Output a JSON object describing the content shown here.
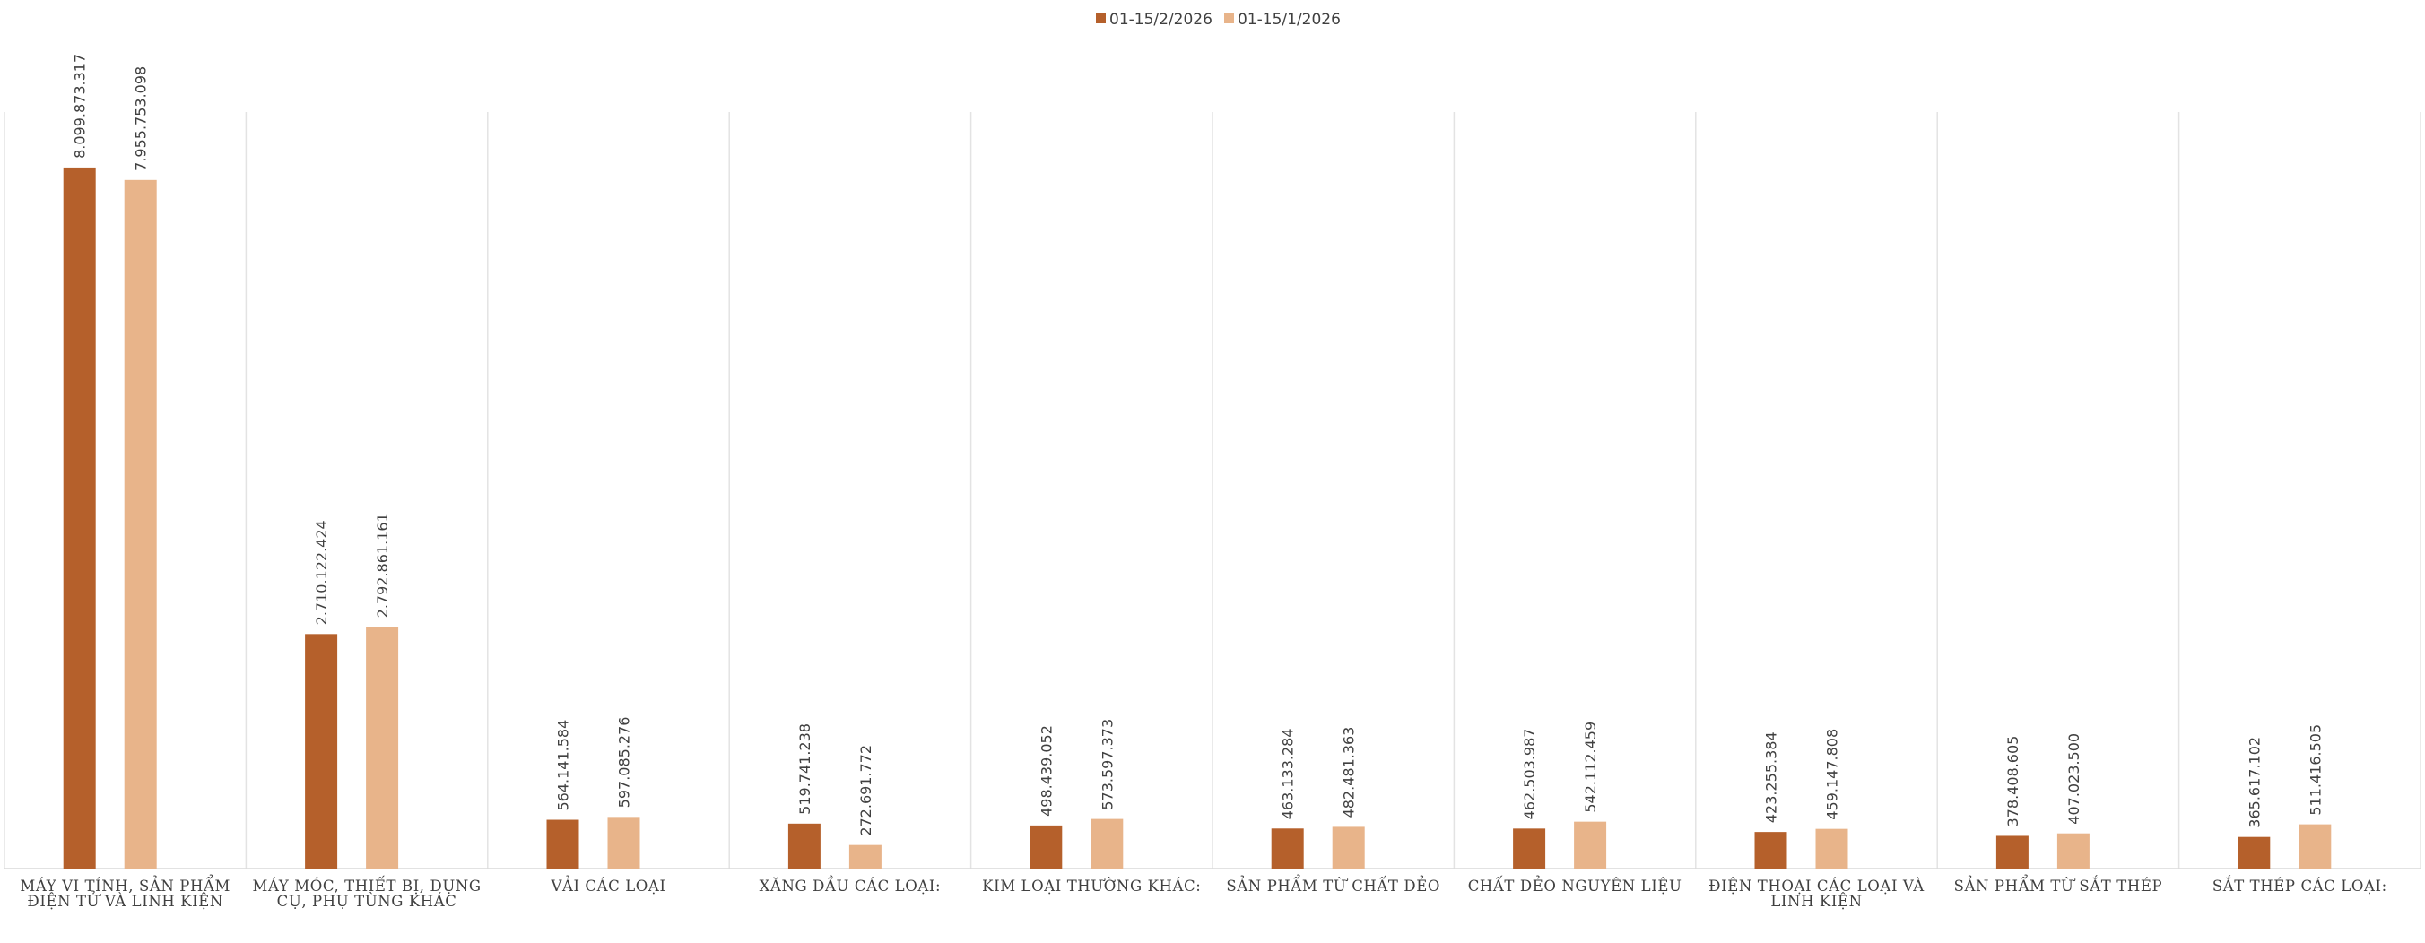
{
  "chart_data": {
    "type": "bar",
    "legend_position": "top",
    "grid": "vertical category separators",
    "series": [
      {
        "name": "01-15/2/2026",
        "color": "#B5602B",
        "values": [
          8099873317,
          2710122424,
          564141584,
          519741238,
          498439052,
          463133284,
          462503987,
          423255384,
          378408605,
          365617102
        ],
        "labels": [
          "8.099.873.317",
          "2.710.122.424",
          "564.141.584",
          "519.741.238",
          "498.439.052",
          "463.133.284",
          "462.503.987",
          "423.255.384",
          "378.408.605",
          "365.617.102"
        ]
      },
      {
        "name": "01-15/1/2026",
        "color": "#E8B48A",
        "values": [
          7955753098,
          2792861161,
          597085276,
          272691772,
          573597373,
          482481363,
          542112459,
          459147808,
          407023500,
          511416505
        ],
        "labels": [
          "7.955.753.098",
          "2.792.861.161",
          "597.085.276",
          "272.691.772",
          "573.597.373",
          "482.481.363",
          "542.112.459",
          "459.147.808",
          "407.023.500",
          "511.416.505"
        ]
      }
    ],
    "categories": [
      [
        "MÁY VI TÍNH, SẢN PHẨM",
        "ĐIỆN TỬ VÀ LINH KIỆN"
      ],
      [
        "MÁY MÓC, THIẾT BỊ, DỤNG",
        "CỤ, PHỤ TÙNG KHÁC"
      ],
      [
        "VẢI CÁC LOẠI"
      ],
      [
        "XĂNG DẦU CÁC LOẠI:"
      ],
      [
        "KIM LOẠI THƯỜNG KHÁC:"
      ],
      [
        "SẢN PHẨM TỪ CHẤT DẺO"
      ],
      [
        "CHẤT DẺO NGUYÊN LIỆU"
      ],
      [
        "ĐIỆN THOẠI CÁC LOẠI VÀ",
        "LINH KIỆN"
      ],
      [
        "SẢN PHẨM TỪ SẮT THÉP"
      ],
      [
        "SẮT THÉP CÁC LOẠI:"
      ]
    ],
    "ylim": [
      0,
      9000000000
    ]
  }
}
